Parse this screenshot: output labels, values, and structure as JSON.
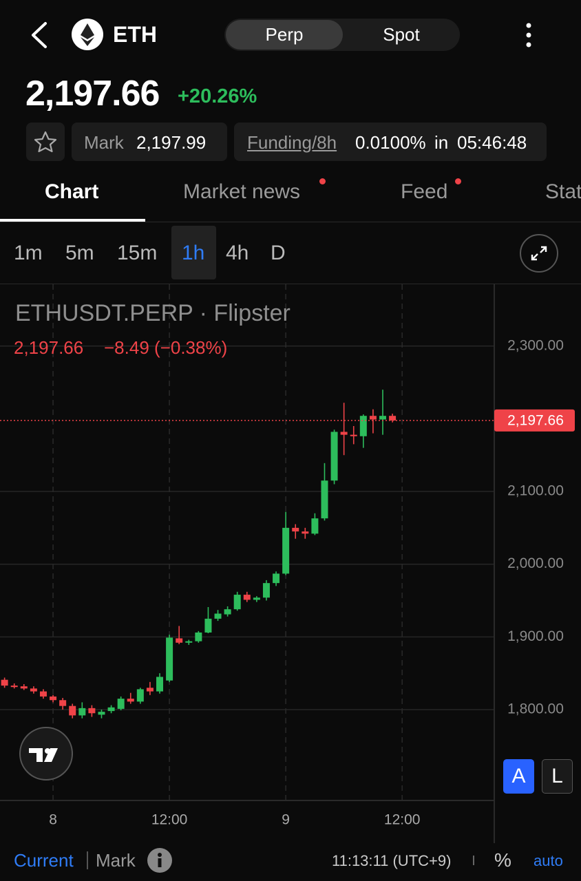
{
  "header": {
    "symbol": "ETH",
    "tabs": [
      "Perp",
      "Spot"
    ]
  },
  "price": {
    "last": "2,197.66",
    "change": "+20.26%"
  },
  "info": {
    "mark_label": "Mark",
    "mark": "2,197.99",
    "funding_label": "Funding/8h",
    "funding": "0.0100%",
    "in": "in",
    "countdown": "05:46:48"
  },
  "nav_tabs": [
    "Chart",
    "Market news",
    "Feed",
    "Stats"
  ],
  "timeframes": [
    "1m",
    "5m",
    "15m",
    "1h",
    "4h",
    "D"
  ],
  "scale_buttons": [
    "A",
    "L"
  ],
  "footer": {
    "current": "Current",
    "mark": "Mark",
    "time": "11:13:11 (UTC+9)",
    "percent": "%",
    "auto": "auto"
  },
  "chart_data": {
    "type": "candlestick",
    "title": "ETHUSDT.PERP · Flipster",
    "legend": {
      "price": "2,197.66",
      "change": "−8.49 (−0.38%)"
    },
    "up_color": "#2dbd5c",
    "down_color": "#ef4348",
    "grid": true,
    "x": [
      -5,
      -4,
      -3,
      -2,
      -1,
      0,
      1,
      2,
      3,
      4,
      5,
      6,
      7,
      8,
      9,
      10,
      11,
      12,
      13,
      14,
      15,
      16,
      17,
      18,
      19,
      20,
      21,
      22,
      23,
      24,
      25,
      26,
      27,
      28,
      29,
      30,
      31,
      32,
      33,
      34,
      35
    ],
    "open": [
      1841,
      1833,
      1832,
      1829,
      1825,
      1818,
      1813,
      1805,
      1792,
      1802,
      1793,
      1798,
      1801,
      1815,
      1811,
      1830,
      1825,
      1840,
      1898,
      1892,
      1894,
      1906,
      1925,
      1931,
      1938,
      1958,
      1951,
      1954,
      1974,
      1987,
      2050,
      2045,
      2042,
      2063,
      2115,
      2182,
      2178,
      2176,
      2204,
      2199,
      2204
    ],
    "high": [
      1844,
      1836,
      1835,
      1832,
      1828,
      1820,
      1816,
      1808,
      1810,
      1806,
      1800,
      1806,
      1818,
      1823,
      1830,
      1838,
      1850,
      1903,
      1915,
      1896,
      1908,
      1941,
      1937,
      1942,
      1962,
      1962,
      1956,
      1978,
      1990,
      2072,
      2055,
      2050,
      2070,
      2139,
      2185,
      2222,
      2190,
      2206,
      2213,
      2240,
      2207
    ],
    "low": [
      1830,
      1829,
      1827,
      1822,
      1815,
      1810,
      1800,
      1788,
      1788,
      1790,
      1788,
      1795,
      1799,
      1808,
      1808,
      1820,
      1822,
      1838,
      1890,
      1889,
      1892,
      1905,
      1922,
      1928,
      1936,
      1948,
      1948,
      1950,
      1970,
      1985,
      2035,
      2035,
      2040,
      2060,
      2110,
      2150,
      2165,
      2160,
      2180,
      2178,
      2195
    ],
    "close": [
      1833,
      1831,
      1829,
      1825,
      1818,
      1813,
      1805,
      1792,
      1802,
      1795,
      1797,
      1803,
      1815,
      1811,
      1828,
      1825,
      1845,
      1899,
      1892,
      1894,
      1906,
      1925,
      1932,
      1938,
      1958,
      1951,
      1954,
      1974,
      1987,
      2050,
      2045,
      2042,
      2063,
      2115,
      2182,
      2178,
      2176,
      2204,
      2199,
      2204,
      2197.66
    ],
    "last_price": {
      "value": 2197.66,
      "label": "2,197.66"
    },
    "xlim": [
      -5.47,
      45.5
    ],
    "xticks": [
      {
        "value": 0,
        "label": "8"
      },
      {
        "value": 12,
        "label": "12:00"
      },
      {
        "value": 24,
        "label": "9"
      },
      {
        "value": 36,
        "label": "12:00"
      }
    ],
    "ylim": [
      1675,
      2385
    ],
    "yticks": [
      {
        "value": 1800,
        "label": "1,800.00"
      },
      {
        "value": 1900,
        "label": "1,900.00"
      },
      {
        "value": 2000,
        "label": "2,000.00"
      },
      {
        "value": 2100,
        "label": "2,100.00"
      },
      {
        "value": 2300,
        "label": "2,300.00"
      }
    ]
  }
}
